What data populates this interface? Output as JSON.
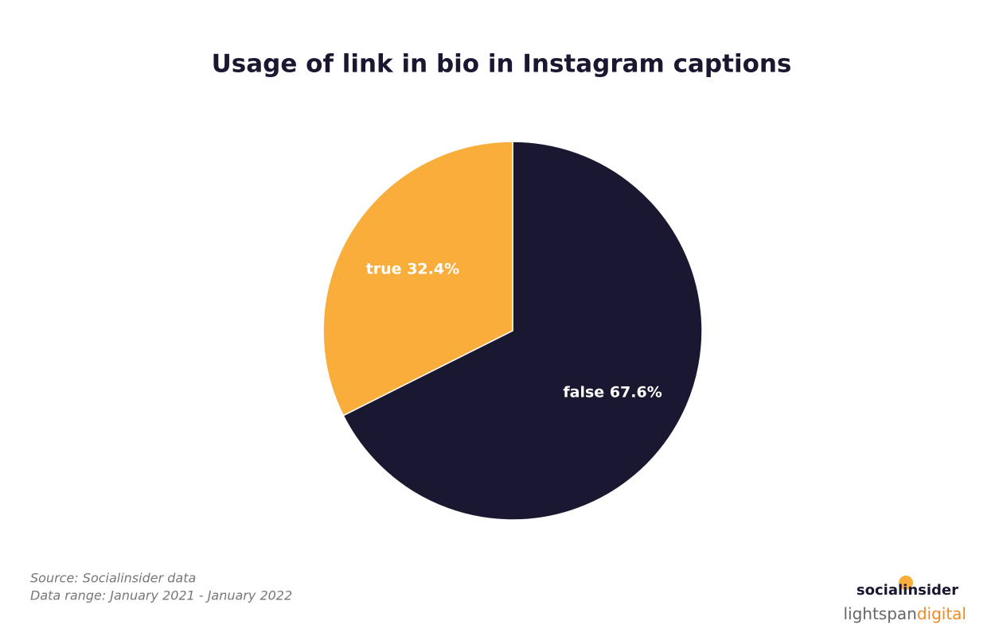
{
  "chart_data": {
    "type": "pie",
    "title": "Usage of link in bio in Instagram captions",
    "categories": [
      "false",
      "true"
    ],
    "values": [
      67.6,
      32.4
    ],
    "value_labels": [
      "67.6%",
      "32.4%"
    ],
    "colors": [
      "#1a1730",
      "#f9ae3b"
    ]
  },
  "footer": {
    "source": "Source: Socialinsider data",
    "range": "Data range: January 2021 - January 2022",
    "logo_top": "socialinsider",
    "logo_bottom_a": "lightspan",
    "logo_bottom_b": "digital"
  }
}
